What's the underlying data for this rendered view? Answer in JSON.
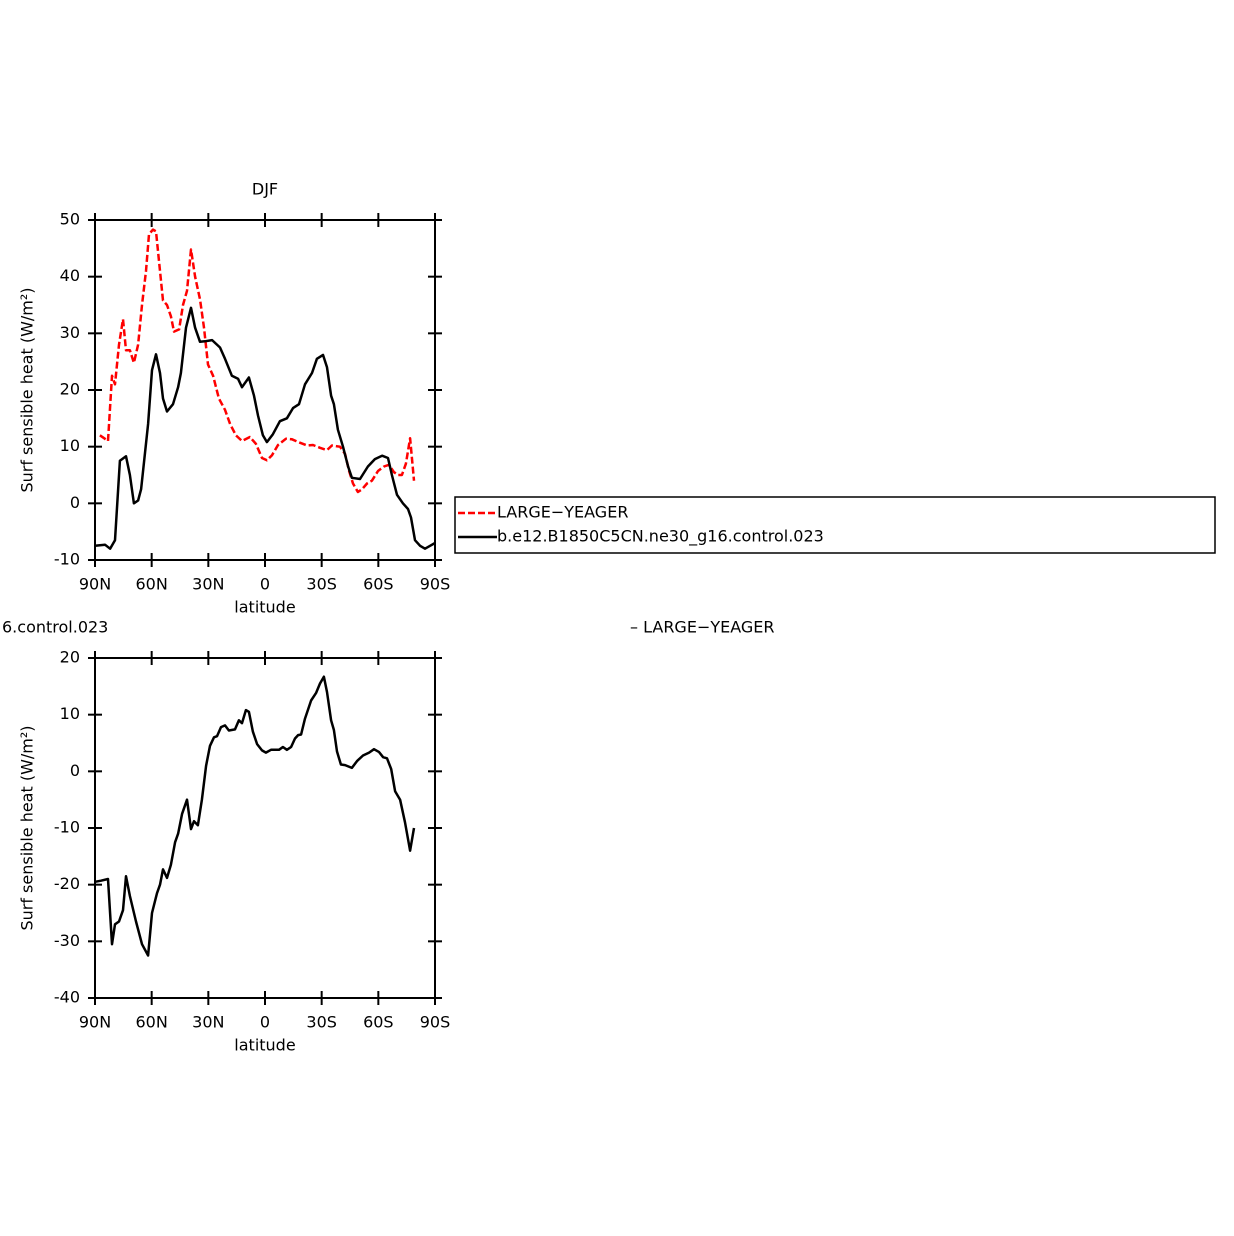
{
  "chart_data": [
    {
      "type": "line",
      "title": "DJF",
      "xlabel": "latitude",
      "ylabel": "Surf sensible heat (W/m²)",
      "xlim": [
        90,
        -90
      ],
      "xticks": [
        {
          "value": 90,
          "label": "90N"
        },
        {
          "value": 60,
          "label": "60N"
        },
        {
          "value": 30,
          "label": "30N"
        },
        0,
        {
          "value": -30,
          "label": "30S"
        },
        {
          "value": -60,
          "label": "60S"
        },
        {
          "value": -90,
          "label": "90S"
        }
      ],
      "ylim": [
        -10,
        50
      ],
      "yticks": [
        -10,
        0,
        10,
        20,
        30,
        40,
        50
      ],
      "legend": "right",
      "series": [
        {
          "name": "LARGE−YEAGER",
          "color": "#ff0000",
          "dash": true,
          "x": [
            87.4,
            85.2,
            83.1,
            81,
            79.4,
            77.3,
            75.2,
            73.6,
            71.5,
            69.4,
            67.2,
            65.1,
            63,
            61.4,
            59.3,
            57.7,
            55.6,
            54,
            51.9,
            49.8,
            48.2,
            45.5,
            43.4,
            41.3,
            39.2,
            37,
            34.4,
            32.3,
            30.2,
            27.5,
            24.4,
            21.2,
            18.5,
            15.4,
            12.2,
            8,
            4.8,
            1.6,
            -1,
            -3.7,
            -6.9,
            -11.1,
            -14.3,
            -18.5,
            -22.3,
            -25.4,
            -29.1,
            -32.8,
            -35.4,
            -39.7,
            -42.4,
            -44.5,
            -46.6,
            -49.2,
            -51.4,
            -54,
            -56.6,
            -59.8,
            -63,
            -65.6,
            -68.3,
            -70.4,
            -72.5,
            -74.6,
            -76.8,
            -78.9
          ],
          "values": [
            12,
            11.5,
            11,
            22.5,
            21,
            28,
            32.5,
            27,
            27,
            24.8,
            28,
            35,
            41,
            47.5,
            48.3,
            48,
            41,
            35.8,
            35,
            33,
            30.3,
            30.7,
            35,
            37.5,
            44.8,
            40,
            36,
            31,
            24.5,
            22.5,
            18.5,
            16.5,
            14,
            12,
            11,
            11.7,
            10.5,
            8,
            7.6,
            8.5,
            10.3,
            11.4,
            11.3,
            10.7,
            10.2,
            10.3,
            9.8,
            9.4,
            10.2,
            10,
            8.7,
            5.7,
            3.5,
            2,
            2.5,
            3.5,
            4,
            5.7,
            6.5,
            6.8,
            5.5,
            5,
            5,
            7,
            11.5,
            4
          ]
        },
        {
          "name": "b.e12.B1850C5CN.ne30_g16.control.023",
          "color": "#000000",
          "dash": false,
          "x": [
            90,
            84.7,
            82,
            79.4,
            76.8,
            73.6,
            71.5,
            69.4,
            67.2,
            65.6,
            61.9,
            59.8,
            57.7,
            55.6,
            54,
            51.9,
            48.7,
            46,
            44.5,
            41.8,
            39.2,
            37,
            34.4,
            31.8,
            28,
            23.8,
            21.2,
            17.5,
            14.3,
            12.2,
            8.5,
            5.8,
            3.7,
            1.1,
            -1,
            -4.2,
            -7.9,
            -11.6,
            -14.8,
            -18,
            -21.2,
            -24.9,
            -27.5,
            -30.7,
            -32.8,
            -35,
            -36.5,
            -38.6,
            -41.3,
            -44,
            -46,
            -50.3,
            -54.5,
            -58.2,
            -62,
            -65.1,
            -67.2,
            -69.9,
            -73,
            -75.7,
            -77.3,
            -79.4,
            -82.1,
            -84.7,
            -87.4,
            -90
          ],
          "values": [
            -7.5,
            -7.3,
            -8,
            -6.5,
            7.5,
            8.3,
            5,
            0,
            0.5,
            2.5,
            14,
            23.5,
            26.3,
            23,
            18.5,
            16.2,
            17.5,
            20.5,
            23,
            31,
            34.5,
            31,
            28.5,
            28.6,
            28.8,
            27.5,
            25.5,
            22.5,
            22,
            20.5,
            22.2,
            19,
            15.5,
            12,
            10.8,
            12.2,
            14.5,
            15,
            16.8,
            17.5,
            21,
            23,
            25.5,
            26.2,
            24,
            19,
            17.5,
            13,
            10,
            6.5,
            4.5,
            4.3,
            6.5,
            7.8,
            8.4,
            8,
            5,
            1.5,
            0,
            -1,
            -2.5,
            -6.5,
            -7.5,
            -8,
            -7.5,
            -7
          ]
        }
      ]
    },
    {
      "type": "line",
      "title_parts": [
        "6.control.023",
        "– LARGE−YEAGER"
      ],
      "xlabel": "latitude",
      "ylabel": "Surf sensible heat (W/m²)",
      "xlim": [
        90,
        -90
      ],
      "xticks": [
        {
          "value": 90,
          "label": "90N"
        },
        {
          "value": 60,
          "label": "60N"
        },
        {
          "value": 30,
          "label": "30N"
        },
        0,
        {
          "value": -30,
          "label": "30S"
        },
        {
          "value": -60,
          "label": "60S"
        },
        {
          "value": -90,
          "label": "90S"
        }
      ],
      "ylim": [
        -40,
        20
      ],
      "yticks": [
        -40,
        -30,
        -20,
        -10,
        0,
        10,
        20
      ],
      "series": [
        {
          "color": "#000000",
          "dash": false,
          "x": [
            90,
            86.8,
            83.1,
            81,
            79.4,
            77.3,
            75.2,
            73.6,
            71.5,
            68.3,
            65.1,
            61.9,
            59.8,
            57.2,
            55.6,
            54,
            51.9,
            49.8,
            47.6,
            46,
            43.9,
            41.3,
            39.2,
            37.6,
            35.5,
            33.4,
            31.2,
            29.1,
            27,
            25.4,
            23.3,
            21.2,
            19.1,
            15.9,
            13.8,
            12.2,
            10.1,
            8.5,
            6.4,
            4.2,
            1.6,
            -0.5,
            -3.2,
            -7.4,
            -9.5,
            -11.6,
            -13.8,
            -15.9,
            -17.5,
            -19.1,
            -21.2,
            -24.4,
            -27,
            -29.1,
            -31.2,
            -32.8,
            -35,
            -36.5,
            -38.1,
            -40.2,
            -42.4,
            -46,
            -48.7,
            -51.9,
            -55.1,
            -57.7,
            -60.4,
            -62.5,
            -64.6,
            -66.8,
            -68.9,
            -71.5,
            -74.1,
            -76.8,
            -78.9
          ],
          "values": [
            -19.5,
            -19.3,
            -19,
            -30.5,
            -27,
            -26.5,
            -24.5,
            -18.5,
            -22,
            -26.5,
            -30.5,
            -32.5,
            -25,
            -21.5,
            -20,
            -17.3,
            -18.8,
            -16.5,
            -12.5,
            -11,
            -7.5,
            -5,
            -10.2,
            -8.8,
            -9.5,
            -5,
            1,
            4.5,
            6,
            6.2,
            7.8,
            8.1,
            7.2,
            7.4,
            9,
            8.5,
            10.8,
            10.5,
            7,
            4.8,
            3.7,
            3.3,
            3.8,
            3.8,
            4.3,
            3.8,
            4.3,
            5.8,
            6.4,
            6.5,
            9.3,
            12.5,
            13.8,
            15.5,
            16.7,
            14,
            9,
            7.3,
            3.5,
            1.2,
            1.1,
            0.6,
            1.8,
            2.8,
            3.3,
            3.9,
            3.4,
            2.5,
            2.3,
            0.4,
            -3.5,
            -5,
            -9,
            -14,
            -10
          ]
        }
      ]
    }
  ]
}
